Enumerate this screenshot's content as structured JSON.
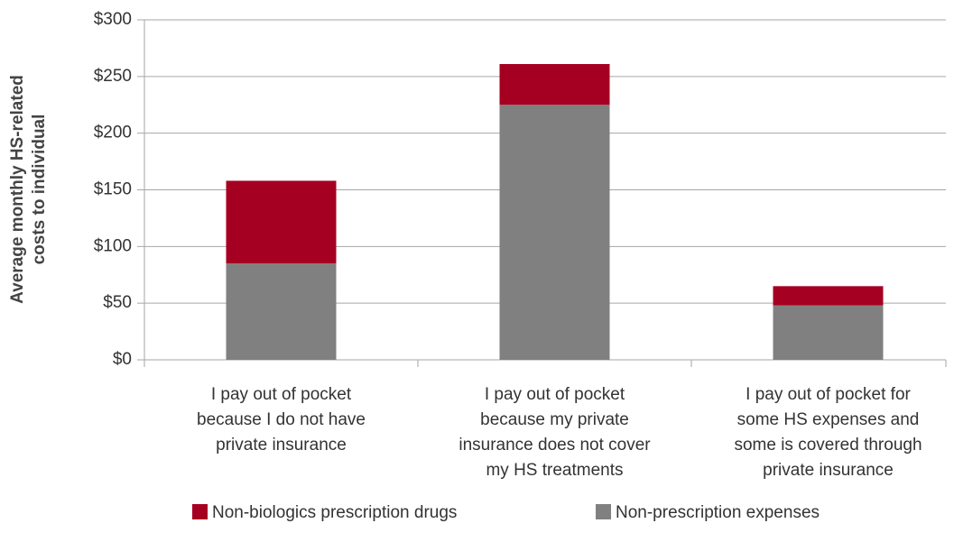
{
  "chart_data": {
    "type": "stacked_bar",
    "y_label": "Average monthly HS-related\ncosts to individual",
    "categories": [
      "I pay out of pocket\nbecause I do not have\nprivate insurance",
      "I pay out of pocket\nbecause my private\ninsurance does not cover\nmy HS treatments",
      "I pay out of pocket for\nsome HS expenses and\nsome is covered through\nprivate insurance"
    ],
    "series": [
      {
        "name": "Non-prescription expenses",
        "color": "#808080",
        "values": [
          85,
          225,
          48
        ]
      },
      {
        "name": "Non-biologics prescription drugs",
        "color": "#a50021",
        "values": [
          73,
          36,
          17
        ]
      }
    ],
    "ylim": [
      0,
      300
    ],
    "yticks": [
      {
        "value": 0,
        "label": "$0"
      },
      {
        "value": 50,
        "label": "$50"
      },
      {
        "value": 100,
        "label": "$100"
      },
      {
        "value": 150,
        "label": "$150"
      },
      {
        "value": 200,
        "label": "$200"
      },
      {
        "value": 250,
        "label": "$250"
      },
      {
        "value": 300,
        "label": "$300"
      }
    ],
    "grid": true,
    "legend": "bottom"
  }
}
